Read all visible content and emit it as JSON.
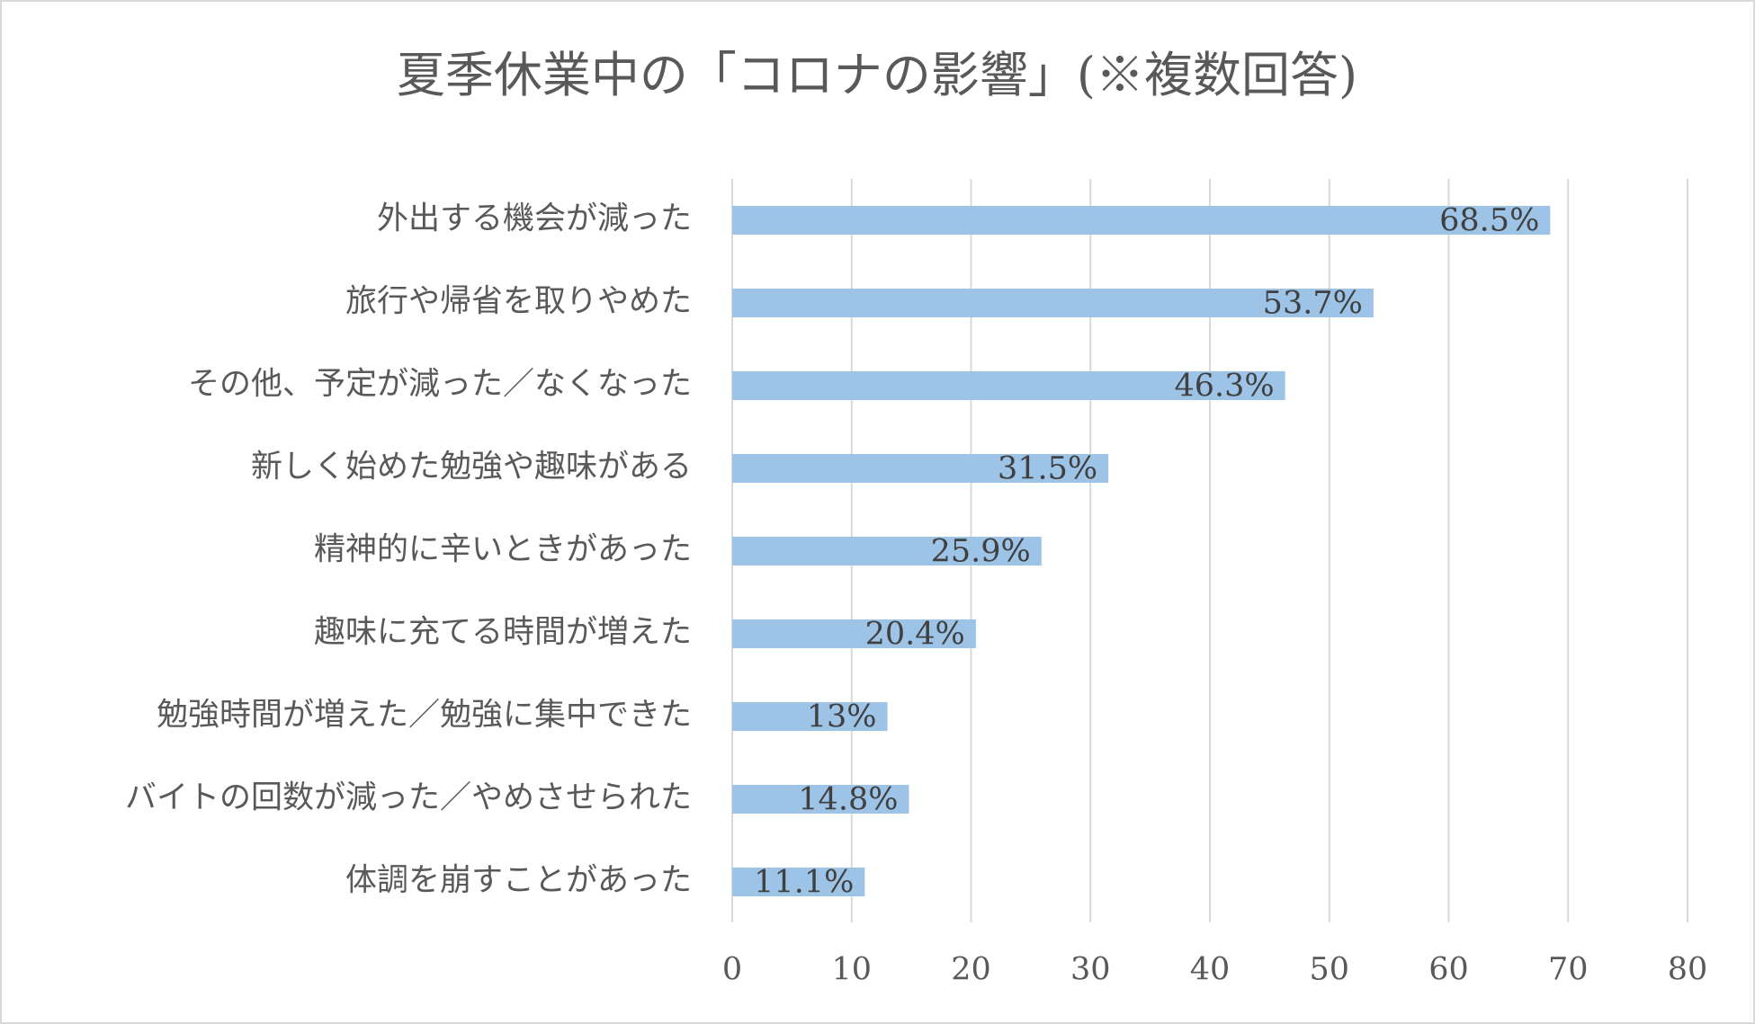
{
  "chart_data": {
    "type": "hbar",
    "title": "夏季休業中の「コロナの影響」(※複数回答)",
    "categories": [
      "外出する機会が減った",
      "旅行や帰省を取りやめた",
      "その他、予定が減った／なくなった",
      "新しく始めた勉強や趣味がある",
      "精神的に辛いときがあった",
      "趣味に充てる時間が増えた",
      "勉強時間が増えた／勉強に集中できた",
      "バイトの回数が減った／やめさせられた",
      "体調を崩すことがあった"
    ],
    "values": [
      68.5,
      53.7,
      46.3,
      31.5,
      25.9,
      20.4,
      13,
      14.8,
      11.1
    ],
    "value_labels": [
      "68.5%",
      "53.7%",
      "46.3%",
      "31.5%",
      "25.9%",
      "20.4%",
      "13%",
      "14.8%",
      "11.1%"
    ],
    "color": "#9dc3e6",
    "xlim": [
      0,
      80
    ],
    "xticks": [
      0,
      10,
      20,
      30,
      40,
      50,
      60,
      70,
      80
    ],
    "grid": true
  }
}
